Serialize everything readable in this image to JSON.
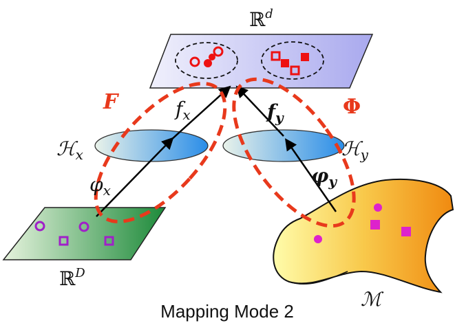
{
  "labels": {
    "space_top": "ℝ",
    "space_top_sup": "d",
    "space_bottom": "ℝ",
    "space_bottom_sup": "D",
    "manifold": "ℳ",
    "F": "F",
    "Phi": "Φ",
    "f_x_base": "f",
    "f_x_sub": "x",
    "f_y_base": "f",
    "f_y_sub": "y",
    "H_x_base": "ℋ",
    "H_x_sub": "x",
    "H_y_base": "ℋ",
    "H_y_sub": "y",
    "phi_x_base": "φ",
    "phi_x_sub": "x",
    "phi_y_base": "φ",
    "phi_y_sub": "y"
  },
  "caption": "Mapping Mode 2",
  "colors": {
    "accent_red": "#e8391c",
    "marker_red": "#ee1111",
    "marker_purple": "#a020c8",
    "marker_magenta": "#dd22cc"
  }
}
